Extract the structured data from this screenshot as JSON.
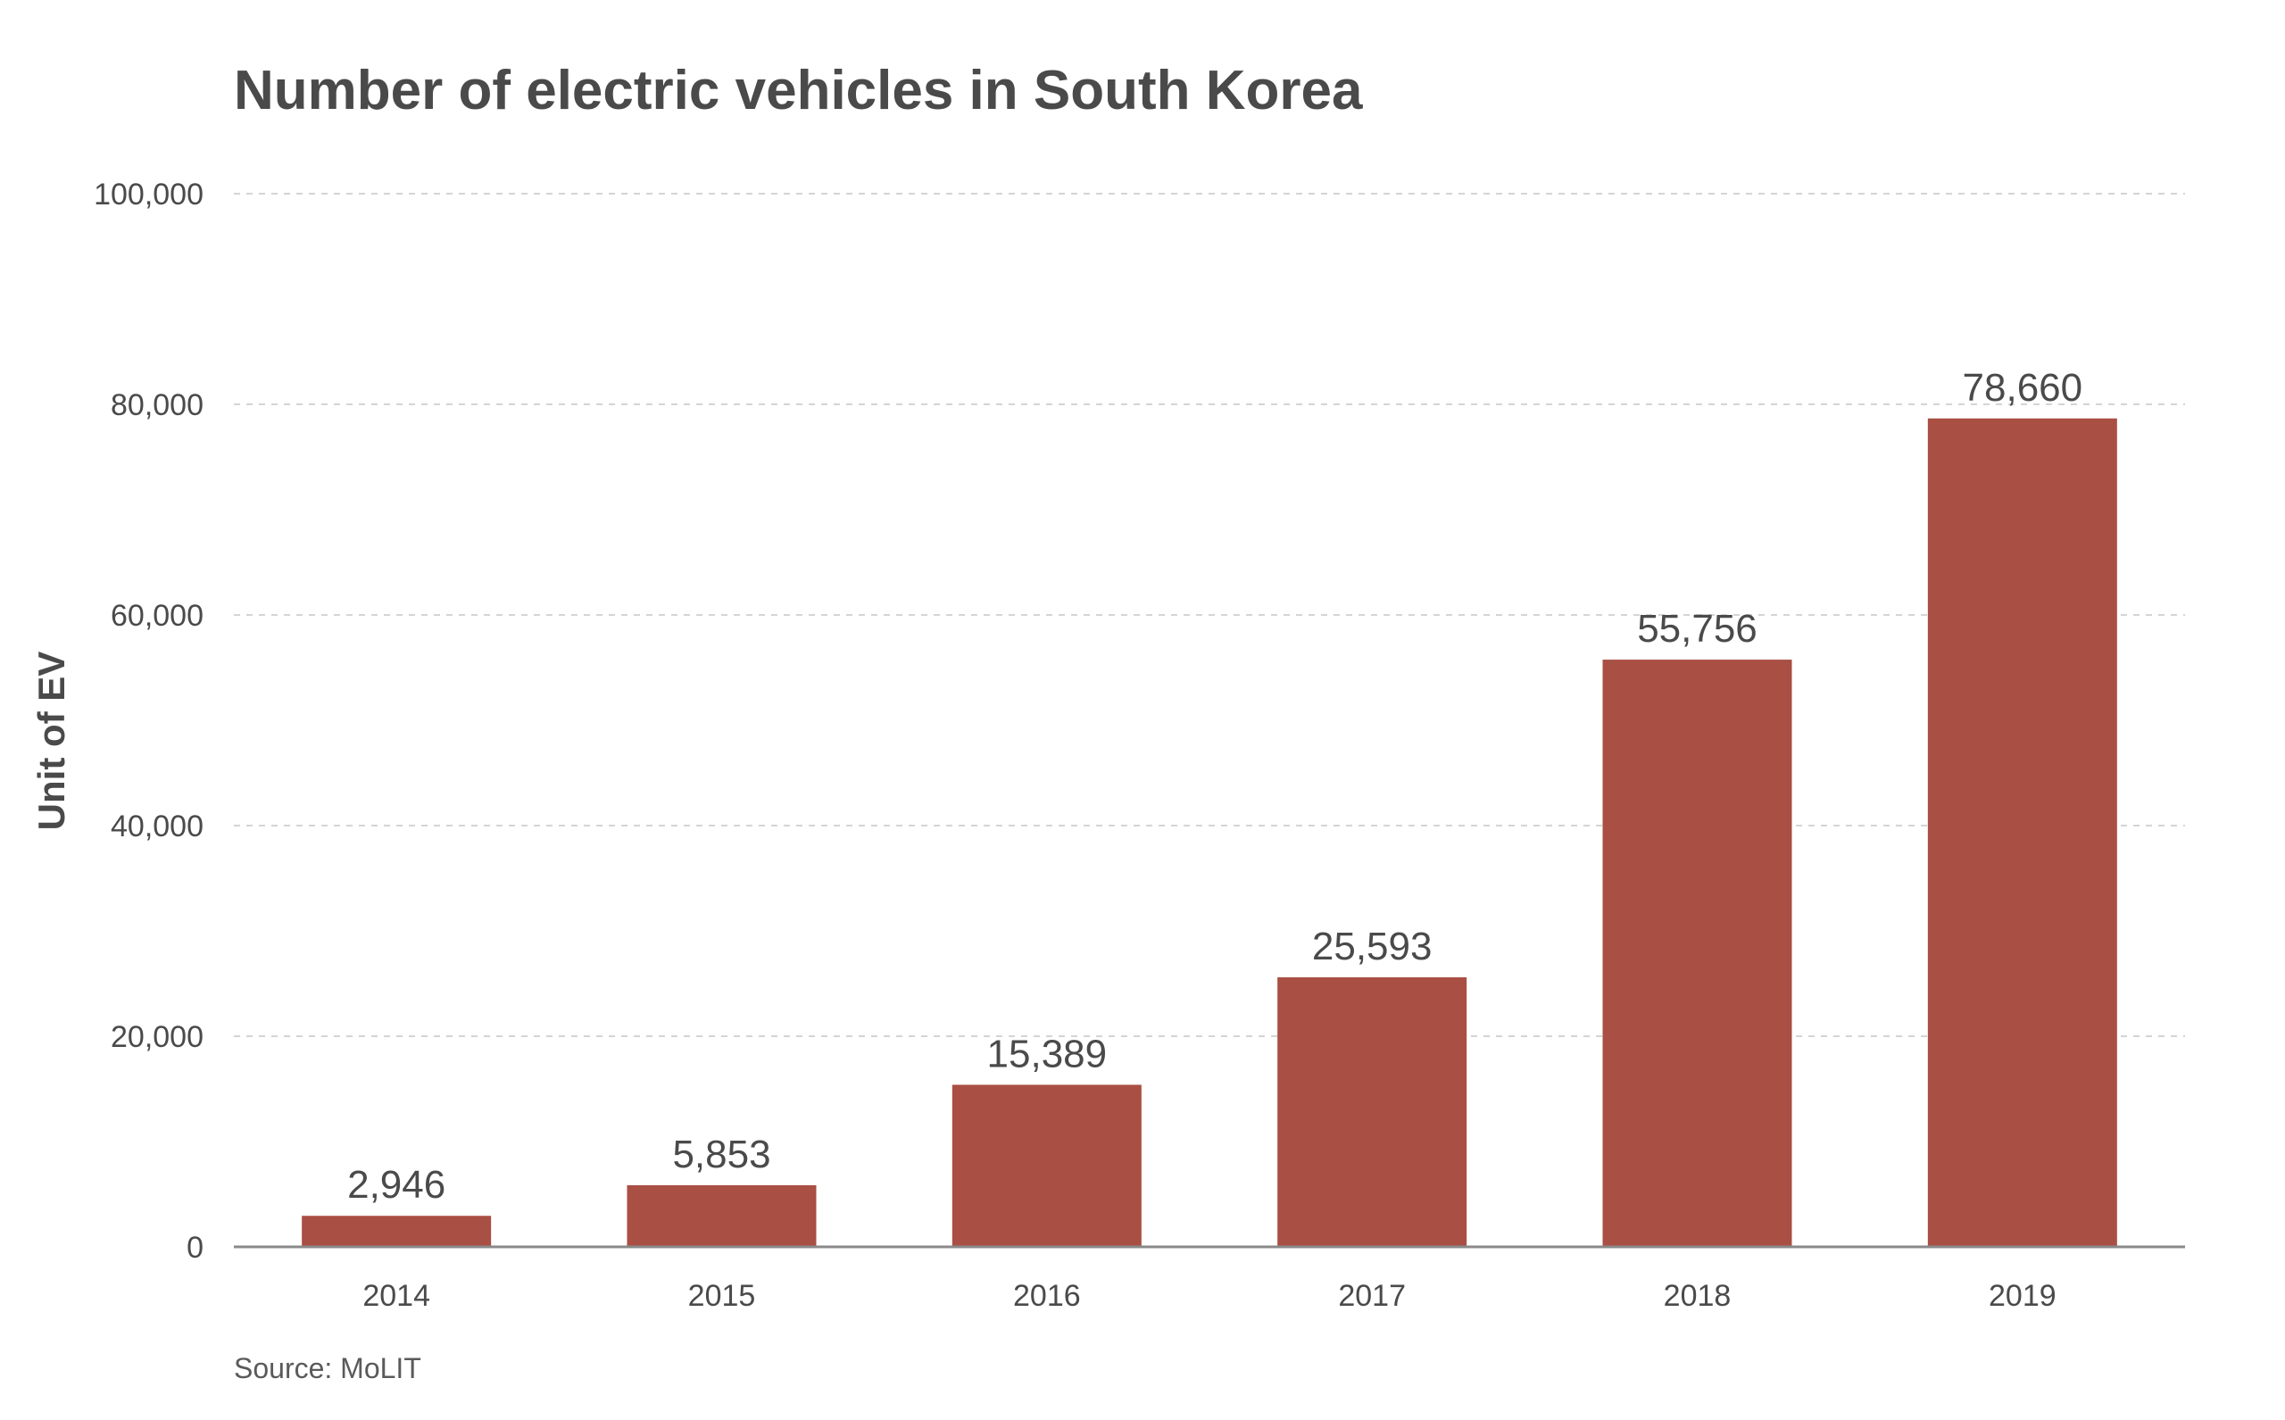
{
  "chart_data": {
    "type": "bar",
    "title": "Number of electric vehicles in South Korea",
    "xlabel": "",
    "ylabel": "Unit of EV",
    "categories": [
      "2014",
      "2015",
      "2016",
      "2017",
      "2018",
      "2019"
    ],
    "values": [
      2946,
      5853,
      15389,
      25593,
      55756,
      78660
    ],
    "data_labels": [
      "2,946",
      "5,853",
      "15,389",
      "25,593",
      "55,756",
      "78,660"
    ],
    "ylim": [
      0,
      100000
    ],
    "yticks": [
      0,
      20000,
      40000,
      60000,
      80000,
      100000
    ],
    "ytick_labels": [
      "0",
      "20,000",
      "40,000",
      "60,000",
      "80,000",
      "100,000"
    ],
    "grid": true,
    "legend": "none",
    "bar_color": "#a94f43",
    "source": "Source: MoLIT"
  }
}
